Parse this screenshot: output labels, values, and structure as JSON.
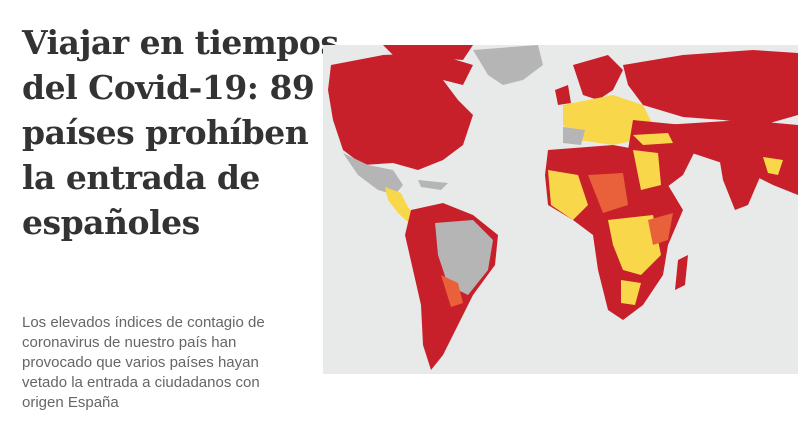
{
  "headline": {
    "lines": [
      "Viajar en tiempos",
      "del Covid-19: 89",
      "países prohíben",
      "la entrada de",
      "españoles"
    ]
  },
  "summary": "Los elevados índices de contagio de coronavirus de nuestro país han provocado que varios países hayan vetado la entrada a ciudadanos con origen España"
}
